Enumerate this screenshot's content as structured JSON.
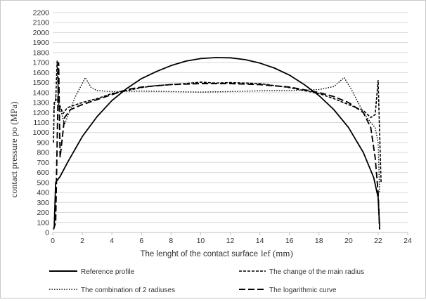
{
  "chart_data": {
    "type": "line",
    "title": "",
    "xlabel_main": "The lenght of the contact surface",
    "xlabel_unit": "lef (mm)",
    "ylabel": "contact pressure po (MPa)",
    "xlim": [
      0,
      24
    ],
    "ylim": [
      0,
      2200
    ],
    "xticks": [
      "0",
      "2",
      "4",
      "6",
      "8",
      "10",
      "12",
      "14",
      "16",
      "18",
      "20",
      "22",
      "24"
    ],
    "yticks": [
      "0",
      "100",
      "200",
      "300",
      "400",
      "500",
      "600",
      "700",
      "800",
      "900",
      "1000",
      "1100",
      "1200",
      "1300",
      "1400",
      "1500",
      "1600",
      "1700",
      "1800",
      "1900",
      "2000",
      "2100",
      "2200"
    ],
    "grid": "horizontal",
    "legend_position": "bottom",
    "series": [
      {
        "name": "Reference profile",
        "color": "#000000",
        "style": "solid",
        "points": [
          [
            0.1,
            50
          ],
          [
            0.2,
            500
          ],
          [
            0.5,
            560
          ],
          [
            1,
            700
          ],
          [
            2,
            960
          ],
          [
            3,
            1160
          ],
          [
            4,
            1320
          ],
          [
            5,
            1440
          ],
          [
            6,
            1540
          ],
          [
            7,
            1610
          ],
          [
            8,
            1670
          ],
          [
            9,
            1715
          ],
          [
            10,
            1740
          ],
          [
            11,
            1750
          ],
          [
            12,
            1748
          ],
          [
            13,
            1730
          ],
          [
            14,
            1695
          ],
          [
            15,
            1645
          ],
          [
            16,
            1575
          ],
          [
            17,
            1480
          ],
          [
            18,
            1370
          ],
          [
            19,
            1230
          ],
          [
            20,
            1050
          ],
          [
            21,
            800
          ],
          [
            21.7,
            550
          ],
          [
            22,
            350
          ],
          [
            22.1,
            60
          ]
        ]
      },
      {
        "name": "The change of the main radius",
        "color": "#000000",
        "style": "dashed",
        "points": [
          [
            0.05,
            900
          ],
          [
            0.1,
            1300
          ],
          [
            0.2,
            1310
          ],
          [
            0.3,
            1715
          ],
          [
            0.4,
            1300
          ],
          [
            0.7,
            1190
          ],
          [
            1,
            1250
          ],
          [
            2,
            1300
          ],
          [
            3,
            1340
          ],
          [
            4,
            1390
          ],
          [
            5,
            1420
          ],
          [
            6,
            1450
          ],
          [
            7,
            1470
          ],
          [
            8,
            1480
          ],
          [
            9,
            1490
          ],
          [
            10,
            1505
          ],
          [
            11,
            1495
          ],
          [
            12,
            1500
          ],
          [
            13,
            1495
          ],
          [
            14,
            1490
          ],
          [
            15,
            1470
          ],
          [
            16,
            1450
          ],
          [
            17,
            1420
          ],
          [
            18,
            1390
          ],
          [
            19,
            1340
          ],
          [
            20,
            1280
          ],
          [
            21,
            1220
          ],
          [
            21.5,
            1150
          ],
          [
            21.8,
            1180
          ],
          [
            22,
            1520
          ],
          [
            22.1,
            1000
          ],
          [
            22.2,
            500
          ]
        ]
      },
      {
        "name": "The combination of 2 radiuses",
        "color": "#000000",
        "style": "dotted",
        "points": [
          [
            0.05,
            1200
          ],
          [
            0.2,
            1350
          ],
          [
            0.5,
            1250
          ],
          [
            0.8,
            1080
          ],
          [
            1.5,
            1350
          ],
          [
            2.2,
            1550
          ],
          [
            2.6,
            1450
          ],
          [
            3,
            1420
          ],
          [
            4,
            1410
          ],
          [
            6,
            1415
          ],
          [
            8,
            1410
          ],
          [
            10,
            1405
          ],
          [
            12,
            1410
          ],
          [
            14,
            1418
          ],
          [
            16,
            1420
          ],
          [
            18,
            1430
          ],
          [
            19,
            1460
          ],
          [
            19.7,
            1550
          ],
          [
            20.2,
            1430
          ],
          [
            21,
            1200
          ],
          [
            21.5,
            1100
          ],
          [
            21.8,
            1050
          ],
          [
            22,
            900
          ],
          [
            22.1,
            400
          ]
        ]
      },
      {
        "name": "The logarithmic curve",
        "color": "#000000",
        "style": "longdash",
        "points": [
          [
            0.05,
            30
          ],
          [
            0.2,
            100
          ],
          [
            0.4,
            1700
          ],
          [
            0.5,
            750
          ],
          [
            0.8,
            1150
          ],
          [
            1.2,
            1230
          ],
          [
            2,
            1280
          ],
          [
            3,
            1330
          ],
          [
            4,
            1380
          ],
          [
            5,
            1430
          ],
          [
            6,
            1455
          ],
          [
            8,
            1480
          ],
          [
            10,
            1490
          ],
          [
            12,
            1490
          ],
          [
            14,
            1480
          ],
          [
            16,
            1455
          ],
          [
            18,
            1400
          ],
          [
            19,
            1360
          ],
          [
            20,
            1300
          ],
          [
            21,
            1200
          ],
          [
            21.5,
            1050
          ],
          [
            21.8,
            750
          ],
          [
            22,
            400
          ],
          [
            22.1,
            30
          ]
        ]
      }
    ]
  }
}
